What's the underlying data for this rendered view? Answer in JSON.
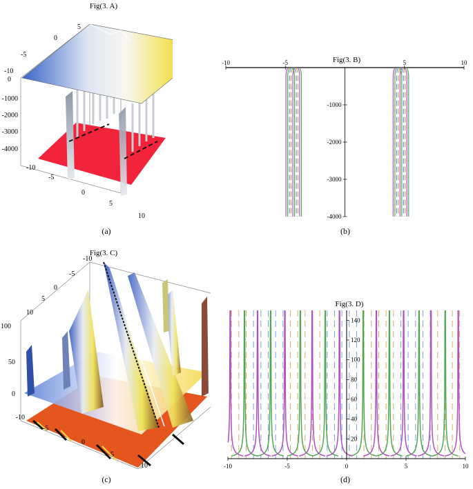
{
  "panels": {
    "a": {
      "title": "Fig(3. A)",
      "caption": "(a)"
    },
    "b": {
      "title": "Fig(3. B)",
      "caption": "(b)"
    },
    "c": {
      "title": "Fig(3. C)",
      "caption": "(c)"
    },
    "d": {
      "title": "Fig(3. D)",
      "caption": "(d)"
    }
  },
  "colors": {
    "magenta": "#b04fc0",
    "green": "#4fa84f",
    "blue_dash": "#6a8fd8",
    "tan_dash": "#c9a050",
    "red_floor": "#f2243c",
    "orange_floor": "#e4561e"
  },
  "chart_data": [
    {
      "id": "A",
      "type": "surface3d",
      "title": "Fig(3. A)",
      "x_ticks": [
        "-10",
        "-5",
        "0",
        "5",
        "10"
      ],
      "y_ticks": [
        "-10",
        "-5",
        "0",
        "5"
      ],
      "z_ticks": [
        "0",
        "-1000",
        "-2000",
        "-3000",
        "-4000"
      ],
      "zlim": [
        -4500,
        0
      ]
    },
    {
      "id": "B",
      "type": "line",
      "title": "Fig(3. B)",
      "xlim": [
        -10,
        10
      ],
      "ylim": [
        -4000,
        0
      ],
      "x_ticks": [
        -10,
        -5,
        5,
        10
      ],
      "y_ticks": [
        -1000,
        -2000,
        -3000,
        -4000
      ],
      "well_centers": [
        -4.3,
        4.7
      ],
      "well_halfwidth": 0.65
    },
    {
      "id": "C",
      "type": "surface3d",
      "title": "Fig(3. C)",
      "x_ticks": [
        "-5",
        "0",
        "5",
        "10"
      ],
      "y_ticks": [
        "-10",
        "-5",
        "0",
        "5",
        "10"
      ],
      "z_ticks": [
        "100",
        "50",
        "0",
        "-10"
      ],
      "zlim": [
        -10,
        100
      ]
    },
    {
      "id": "D",
      "type": "line",
      "title": "Fig(3. D)",
      "xlim": [
        -10,
        10
      ],
      "ylim": [
        0,
        150
      ],
      "x_ticks": [
        -10,
        -5,
        0,
        5,
        10
      ],
      "y_ticks": [
        20,
        40,
        60,
        80,
        100,
        120,
        140
      ],
      "green_asymptotes": [
        -8.6,
        -6.4,
        -3.9,
        -1.8,
        1.4,
        3.6,
        6.1,
        8.3
      ],
      "magenta_asymptotes": [
        -9.8,
        -7.5,
        -5.2,
        -2.9,
        -0.6,
        2.5,
        4.8,
        7.1,
        9.4
      ]
    }
  ]
}
